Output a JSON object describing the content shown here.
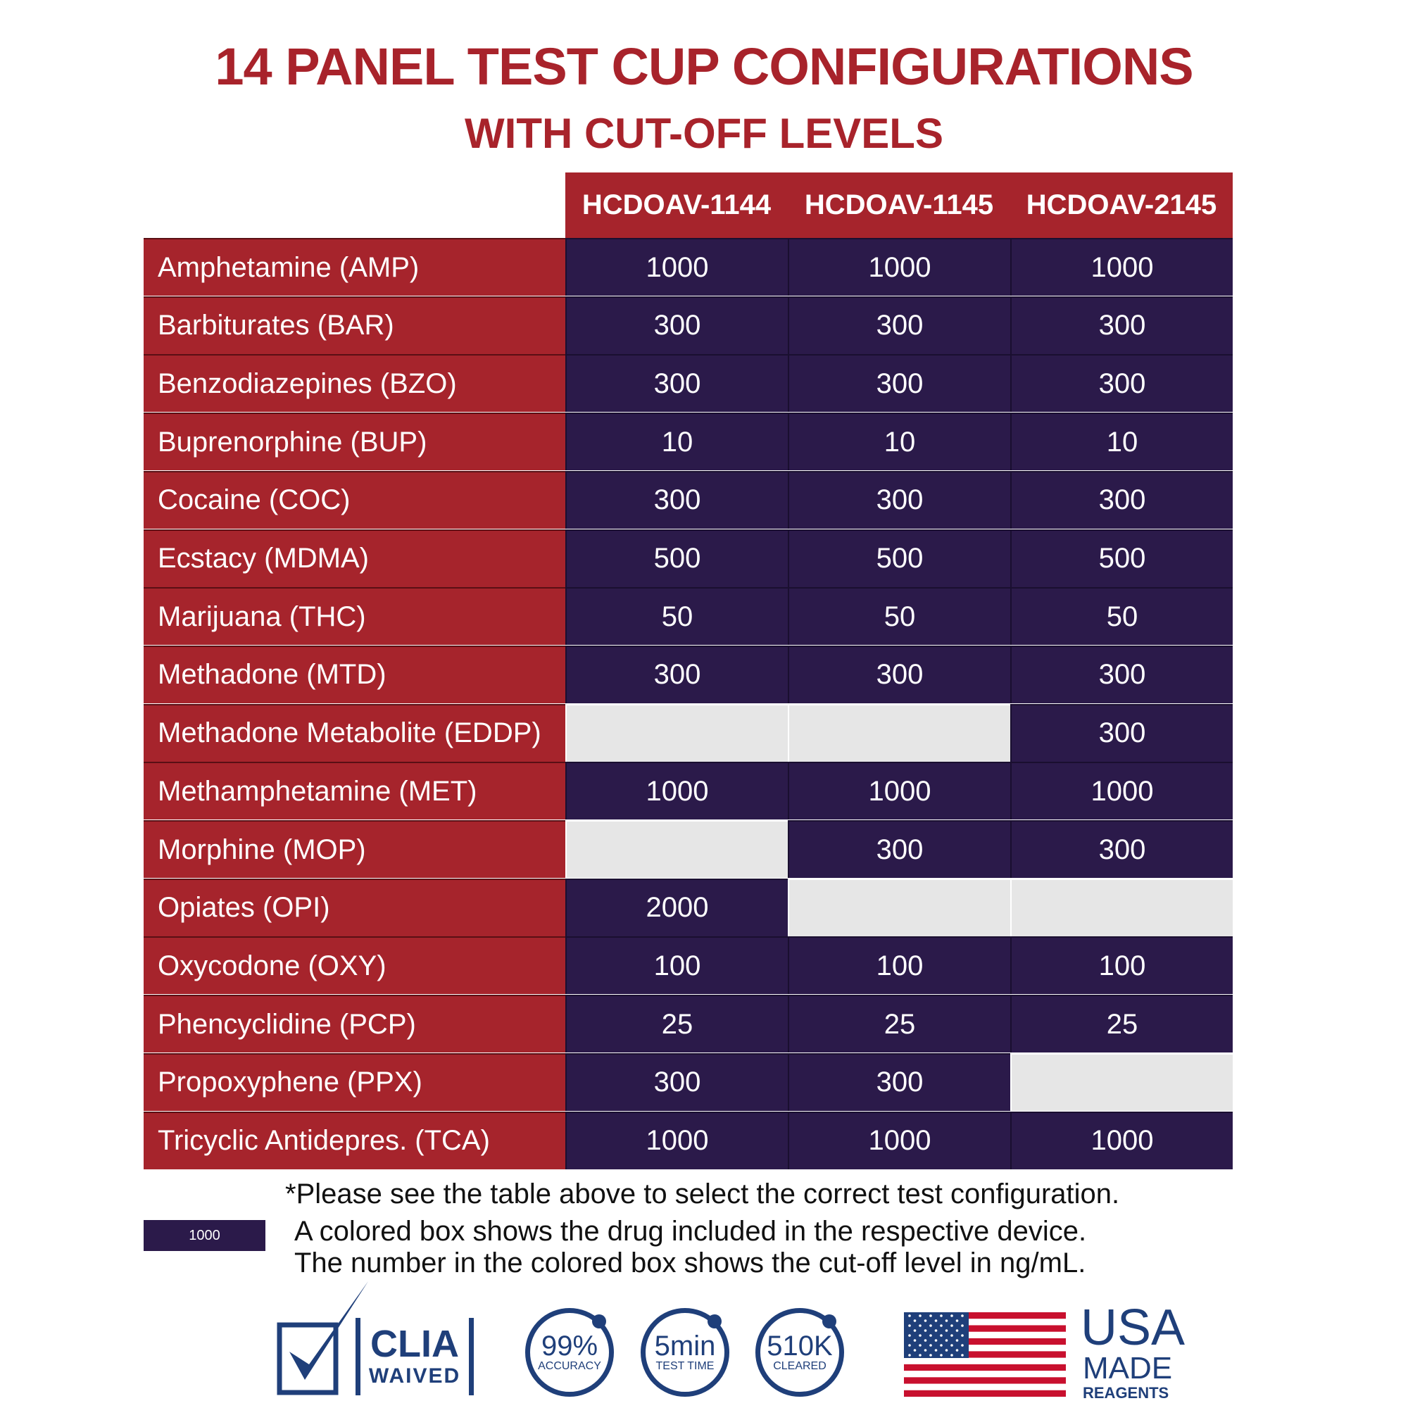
{
  "title": "14 PANEL TEST CUP CONFIGURATIONS",
  "subtitle": "WITH CUT-OFF LEVELS",
  "columns": [
    "HCDOAV-1144",
    "HCDOAV-1145",
    "HCDOAV-2145"
  ],
  "rows": [
    {
      "drug": "Amphetamine (AMP)",
      "values": [
        "1000",
        "1000",
        "1000"
      ]
    },
    {
      "drug": "Barbiturates (BAR)",
      "values": [
        "300",
        "300",
        "300"
      ]
    },
    {
      "drug": "Benzodiazepines (BZO)",
      "values": [
        "300",
        "300",
        "300"
      ]
    },
    {
      "drug": "Buprenorphine (BUP)",
      "values": [
        "10",
        "10",
        "10"
      ]
    },
    {
      "drug": "Cocaine (COC)",
      "values": [
        "300",
        "300",
        "300"
      ]
    },
    {
      "drug": "Ecstacy (MDMA)",
      "values": [
        "500",
        "500",
        "500"
      ]
    },
    {
      "drug": "Marijuana (THC)",
      "values": [
        "50",
        "50",
        "50"
      ]
    },
    {
      "drug": "Methadone (MTD)",
      "values": [
        "300",
        "300",
        "300"
      ]
    },
    {
      "drug": "Methadone Metabolite (EDDP)",
      "values": [
        null,
        null,
        "300"
      ]
    },
    {
      "drug": "Methamphetamine (MET)",
      "values": [
        "1000",
        "1000",
        "1000"
      ]
    },
    {
      "drug": "Morphine (MOP)",
      "values": [
        null,
        "300",
        "300"
      ]
    },
    {
      "drug": "Opiates (OPI)",
      "values": [
        "2000",
        null,
        null
      ]
    },
    {
      "drug": "Oxycodone (OXY)",
      "values": [
        "100",
        "100",
        "100"
      ]
    },
    {
      "drug": "Phencyclidine (PCP)",
      "values": [
        "25",
        "25",
        "25"
      ]
    },
    {
      "drug": "Propoxyphene (PPX)",
      "values": [
        "300",
        "300",
        null
      ]
    },
    {
      "drug": "Tricyclic Antidepres. (TCA)",
      "values": [
        "1000",
        "1000",
        "1000"
      ]
    }
  ],
  "notes": {
    "line1": "*Please see the table above to select the correct test configuration.",
    "line2": "A colored box shows the drug included in the respective device.",
    "line3": "The number in the colored box shows the cut-off level in ng/mL.",
    "legend_value": "1000"
  },
  "badges": {
    "clia_top": "CLIA",
    "clia_bottom": "WAIVED",
    "accuracy_value": "99%",
    "accuracy_label": "ACCURACY",
    "time_value": "5min",
    "time_label": "TEST TIME",
    "fda_value": "510K",
    "fda_label": "CLEARED",
    "usa": "USA",
    "made": "MADE",
    "reagents": "REAGENTS"
  },
  "colors": {
    "red": "#a6242c",
    "navy": "#2b1a4a",
    "empty": "#e6e6e6",
    "badge_blue": "#1f3f7a"
  }
}
